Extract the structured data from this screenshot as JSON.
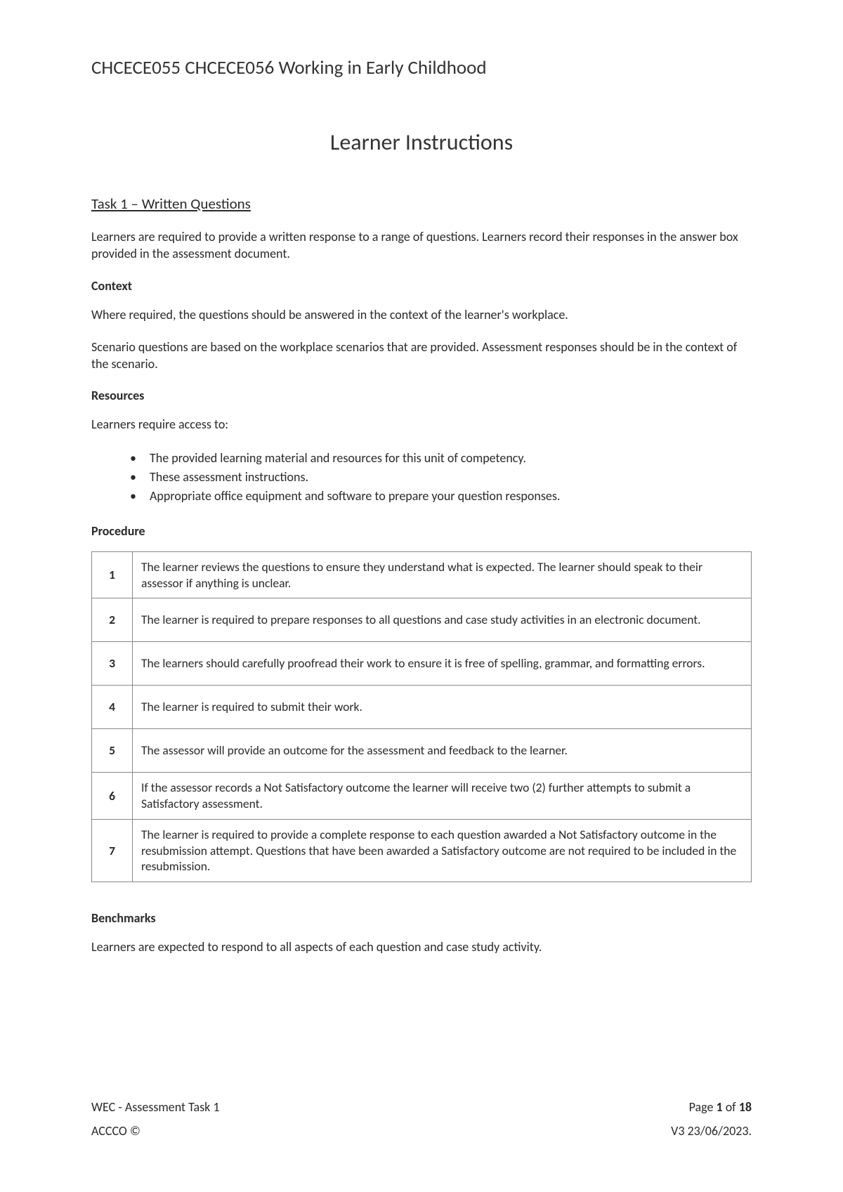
{
  "header": "CHCECE055 CHCECE056 Working in Early Childhood",
  "title": "Learner Instructions",
  "task_title": "Task 1 – Written Questions",
  "intro": "Learners are required to provide a written response to a range of questions. Learners record their responses in the answer box provided in the assessment document.",
  "context_head": "Context",
  "context_p1": "Where required, the questions should be answered in the context of the learner's workplace.",
  "context_p2": "Scenario questions are based on the workplace scenarios that are provided. Assessment responses should be in the context of the scenario.",
  "resources_head": "Resources",
  "resources_intro": "Learners require access to:",
  "resources_items": {
    "0": "The provided learning material and resources for this unit of competency.",
    "1": "These assessment instructions.",
    "2": "Appropriate office equipment and software to prepare your question responses."
  },
  "procedure_head": "Procedure",
  "procedure": {
    "0": {
      "n": "1",
      "t": "The learner reviews the questions to ensure they understand what is expected. The learner should speak to their assessor if anything is unclear."
    },
    "1": {
      "n": "2",
      "t": "The learner is required to prepare responses to all questions and case study activities in an electronic document."
    },
    "2": {
      "n": "3",
      "t": "The learners should carefully proofread their work to ensure it is free of spelling, grammar, and formatting errors."
    },
    "3": {
      "n": "4",
      "t": "The learner is required to submit their work."
    },
    "4": {
      "n": "5",
      "t": "The assessor will provide an outcome for the assessment and feedback to the learner."
    },
    "5": {
      "n": "6",
      "t": "If the assessor records a Not Satisfactory outcome the learner will receive two (2) further attempts to submit a Satisfactory assessment."
    },
    "6": {
      "n": "7",
      "t": "The learner is required to provide a complete response to each question awarded a Not Satisfactory outcome in the resubmission attempt. Questions that have been awarded a Satisfactory outcome are not required to be included in the resubmission."
    }
  },
  "benchmarks_head": "Benchmarks",
  "benchmarks_text": "Learners are expected to respond to all aspects of each question and case study activity.",
  "footer": {
    "left1": "WEC - Assessment Task 1",
    "left2": "ACCCO ©",
    "page_prefix": "Page ",
    "page_current": "1",
    "page_of": " of ",
    "page_total": "18",
    "version": "V3 23/06/2023."
  }
}
